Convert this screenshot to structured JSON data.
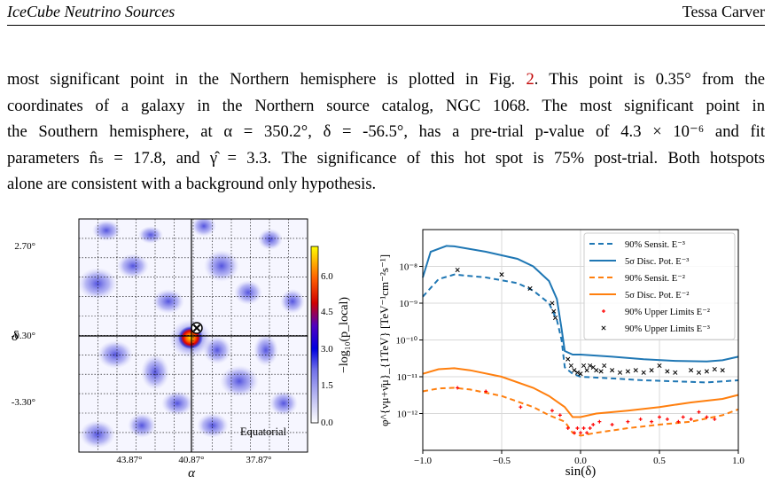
{
  "header": {
    "left": "IceCube Neutrino Sources",
    "right": "Tessa Carver"
  },
  "paragraph": {
    "l1a": "most significant point in the Northern hemisphere is plotted in Fig. ",
    "l1ref": "2",
    "l1b": ". This point is 0.35° from the",
    "l2": "coordinates of a galaxy in the Northern source catalog, NGC 1068. The most significant point in",
    "l3": "the Southern hemisphere, at α = 350.2°, δ = -56.5°, has a pre-trial p-value of 4.3 × 10⁻⁶ and fit",
    "l4": "parameters n̂ₛ = 17.8, and γ̂ = 3.3. The significance of this hot spot is 75% post-trial. Both hotspots",
    "l5": "alone are consistent with a background only hypothesis."
  },
  "skymap": {
    "xlabel": "α",
    "ylabel": "δ",
    "xticks": [
      "43.87°",
      "40.87°",
      "37.87°"
    ],
    "yticks": [
      "2.70°",
      "-0.30°",
      "-3.30°"
    ],
    "frame_label": "Equatorial",
    "colorbar_label": "−log₁₀(p_local)",
    "colorbar_ticks": [
      "6.0",
      "4.5",
      "3.0",
      "1.5",
      "0.0"
    ],
    "colors": {
      "low": "#ffffff",
      "mid": "#2a2ad0",
      "high": "#ff0000",
      "top": "#ffff00"
    }
  },
  "chart_data": {
    "type": "line",
    "xlabel": "sin(δ)",
    "ylabel": "φ^{νμ+ν̄μ}_{1TeV} [TeV⁻¹cm⁻²s⁻¹]",
    "xlim": [
      -1.0,
      1.0
    ],
    "ylim": [
      1e-13,
      1e-07
    ],
    "yscale": "log",
    "xticks": [
      "−1.0",
      "−0.5",
      "0.0",
      "0.5",
      "1.0"
    ],
    "yticks": [
      "10⁻⁸",
      "10⁻⁹",
      "10⁻¹⁰",
      "10⁻¹¹",
      "10⁻¹²"
    ],
    "grid": true,
    "legend_position": "upper right",
    "series": [
      {
        "name": "90% Sensit. E⁻³",
        "style": "dashed",
        "color": "#1f77b4",
        "x": [
          -1.0,
          -0.9,
          -0.8,
          -0.6,
          -0.4,
          -0.3,
          -0.2,
          -0.15,
          -0.12,
          -0.1,
          -0.05,
          0.0,
          0.2,
          0.4,
          0.6,
          0.8,
          0.9,
          1.0
        ],
        "y": [
          1.5e-09,
          4.5e-09,
          6e-09,
          5e-09,
          3.5e-09,
          2.2e-09,
          1e-09,
          3.5e-10,
          1e-10,
          1.8e-11,
          1.2e-11,
          1e-11,
          9e-12,
          8e-12,
          7.5e-12,
          7e-12,
          7.5e-12,
          8e-12
        ]
      },
      {
        "name": "5σ Disc. Pot. E⁻³",
        "style": "solid",
        "color": "#1f77b4",
        "x": [
          -1.0,
          -0.95,
          -0.85,
          -0.8,
          -0.6,
          -0.4,
          -0.3,
          -0.2,
          -0.15,
          -0.12,
          -0.1,
          -0.05,
          0.0,
          0.2,
          0.4,
          0.6,
          0.8,
          0.9,
          1.0
        ],
        "y": [
          5e-09,
          2.5e-08,
          3.6e-08,
          3.5e-08,
          2.5e-08,
          1.6e-08,
          1e-08,
          4e-09,
          1.3e-09,
          2e-10,
          5e-11,
          4e-11,
          4e-11,
          3.5e-11,
          3e-11,
          2.7e-11,
          2.6e-11,
          2.8e-11,
          3.5e-11
        ]
      },
      {
        "name": "90% Sensit. E⁻²",
        "style": "dashed",
        "color": "#ff7f0e",
        "x": [
          -1.0,
          -0.9,
          -0.8,
          -0.7,
          -0.5,
          -0.3,
          -0.2,
          -0.1,
          -0.05,
          0.0,
          0.1,
          0.3,
          0.5,
          0.7,
          0.9,
          1.0
        ],
        "y": [
          4e-12,
          4.8e-12,
          5e-12,
          4.5e-12,
          3e-12,
          1.5e-12,
          9e-13,
          6e-13,
          3e-13,
          2.5e-13,
          3e-13,
          4e-13,
          5e-13,
          6e-13,
          9e-13,
          1.3e-12
        ]
      },
      {
        "name": "5σ Disc. Pot. E⁻²",
        "style": "solid",
        "color": "#ff7f0e",
        "x": [
          -1.0,
          -0.9,
          -0.8,
          -0.7,
          -0.5,
          -0.3,
          -0.2,
          -0.1,
          -0.05,
          0.0,
          0.1,
          0.3,
          0.5,
          0.7,
          0.9,
          1.0
        ],
        "y": [
          1.2e-11,
          1.6e-11,
          1.7e-11,
          1.5e-11,
          1e-11,
          5e-12,
          3e-12,
          1.5e-12,
          8e-13,
          8e-13,
          1e-12,
          1.2e-12,
          1.5e-12,
          2e-12,
          2.5e-12,
          3.2e-12
        ]
      },
      {
        "name": "90% Upper Limits E⁻²",
        "style": "points",
        "color": "#ff0000",
        "x": [
          -0.78,
          -0.6,
          -0.38,
          -0.18,
          -0.13,
          -0.08,
          -0.04,
          -0.02,
          0.0,
          0.02,
          0.04,
          0.06,
          0.08,
          0.12,
          0.2,
          0.3,
          0.38,
          0.45,
          0.5,
          0.55,
          0.62,
          0.65,
          0.7,
          0.75,
          0.8,
          0.85
        ],
        "y": [
          5e-12,
          4e-12,
          1.5e-12,
          1.2e-12,
          9e-13,
          4e-13,
          3e-13,
          4e-13,
          3e-13,
          4e-13,
          3e-13,
          4e-13,
          5e-13,
          6e-13,
          5e-13,
          6e-13,
          7e-13,
          6e-13,
          8e-13,
          7e-13,
          6e-13,
          8e-13,
          7e-13,
          1.1e-12,
          8e-13,
          7e-13
        ]
      },
      {
        "name": "90% Upper Limits E⁻³",
        "style": "points",
        "color": "#000000",
        "x": [
          -0.78,
          -0.5,
          -0.32,
          -0.18,
          -0.17,
          -0.16,
          -0.08,
          -0.06,
          -0.04,
          -0.02,
          0.0,
          0.02,
          0.04,
          0.06,
          0.08,
          0.1,
          0.13,
          0.15,
          0.2,
          0.25,
          0.3,
          0.35,
          0.4,
          0.45,
          0.5,
          0.55,
          0.6,
          0.7,
          0.75,
          0.8,
          0.85,
          0.9
        ],
        "y": [
          8e-09,
          6e-09,
          2.5e-09,
          1e-09,
          6e-10,
          4e-10,
          3e-11,
          2e-11,
          1.5e-11,
          1.3e-11,
          1.2e-11,
          2e-11,
          1.5e-11,
          2e-11,
          1.8e-11,
          1.5e-11,
          1.4e-11,
          2e-11,
          1.5e-11,
          1.3e-11,
          1.4e-11,
          1.5e-11,
          1.3e-11,
          1.5e-11,
          2e-11,
          1.4e-11,
          1.3e-11,
          1.5e-11,
          1.3e-11,
          1.4e-11,
          1.6e-11,
          1.5e-11
        ]
      }
    ]
  }
}
